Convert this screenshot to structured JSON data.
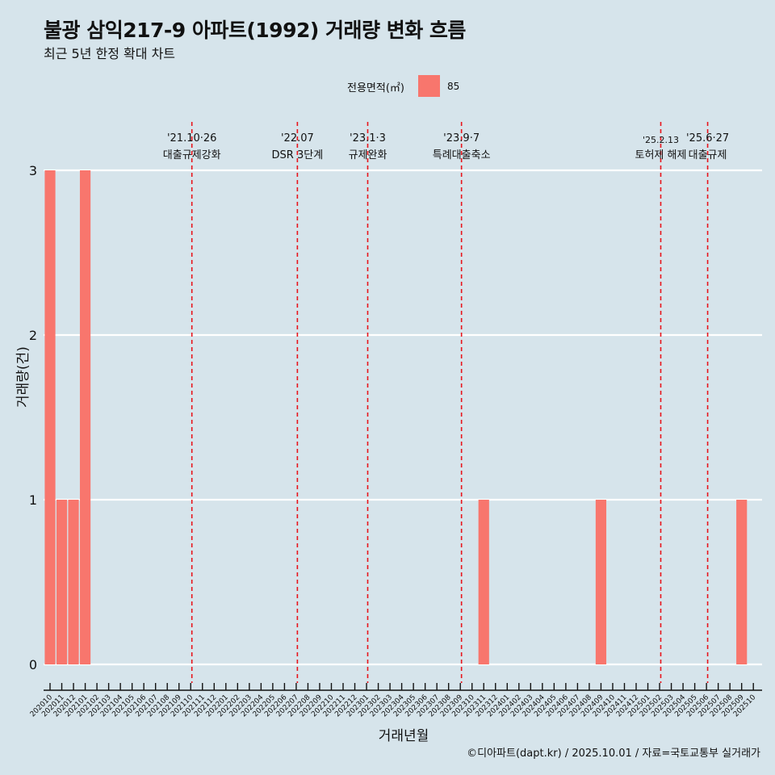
{
  "title": "불광 삼익217-9 아파트(1992) 거래량 변화 흐름",
  "subtitle": "최근 5년 한정 확대 차트",
  "caption": "©디아파트(dapt.kr) / 2025.10.01 / 자료=국토교통부 실거래가",
  "colors": {
    "background": "#d6e4eb",
    "bar": "#f8766d",
    "event_line": "#e8141b",
    "grid": "#ffffff"
  },
  "chart_data": {
    "type": "bar",
    "xlabel": "거래년월",
    "ylabel": "거래량(건)",
    "ylim": [
      0,
      3
    ],
    "yticks": [
      0,
      1,
      2,
      3
    ],
    "legend": {
      "title": "전용면적(㎡)",
      "entries": [
        "85"
      ],
      "position": "top"
    },
    "categories": [
      "202010",
      "202011",
      "202012",
      "202101",
      "202102",
      "202103",
      "202104",
      "202105",
      "202106",
      "202107",
      "202108",
      "202109",
      "202110",
      "202111",
      "202112",
      "202201",
      "202202",
      "202203",
      "202204",
      "202205",
      "202206",
      "202207",
      "202208",
      "202209",
      "202210",
      "202211",
      "202212",
      "202301",
      "202302",
      "202303",
      "202304",
      "202305",
      "202306",
      "202307",
      "202308",
      "202309",
      "202310",
      "202311",
      "202312",
      "202401",
      "202402",
      "202403",
      "202404",
      "202405",
      "202406",
      "202407",
      "202408",
      "202409",
      "202410",
      "202411",
      "202412",
      "202501",
      "202502",
      "202503",
      "202504",
      "202505",
      "202506",
      "202507",
      "202508",
      "202509",
      "202510"
    ],
    "series": [
      {
        "name": "85",
        "values": [
          3,
          1,
          1,
          3,
          0,
          0,
          0,
          0,
          0,
          0,
          0,
          0,
          0,
          0,
          0,
          0,
          0,
          0,
          0,
          0,
          0,
          0,
          0,
          0,
          0,
          0,
          0,
          0,
          0,
          0,
          0,
          0,
          0,
          0,
          0,
          0,
          0,
          1,
          0,
          0,
          0,
          0,
          0,
          0,
          0,
          0,
          0,
          1,
          0,
          0,
          0,
          0,
          0,
          0,
          0,
          0,
          0,
          0,
          0,
          1,
          0
        ]
      }
    ],
    "events": [
      {
        "date": "'21.10·26",
        "label": "대출규제강화",
        "month": 12.1
      },
      {
        "date": "'22.07",
        "label": "DSR 3단계",
        "month": 21.1
      },
      {
        "date": "'23.1·3",
        "label": "규제완화",
        "month": 27.1
      },
      {
        "date": "'23.9·7",
        "label": "특례대출축소",
        "month": 35.1
      },
      {
        "date": "'25.2.13",
        "label": "토허제 해제",
        "month": 52.1
      },
      {
        "date": "'25.6·27",
        "label": "대출규제",
        "month": 56.1
      }
    ]
  }
}
